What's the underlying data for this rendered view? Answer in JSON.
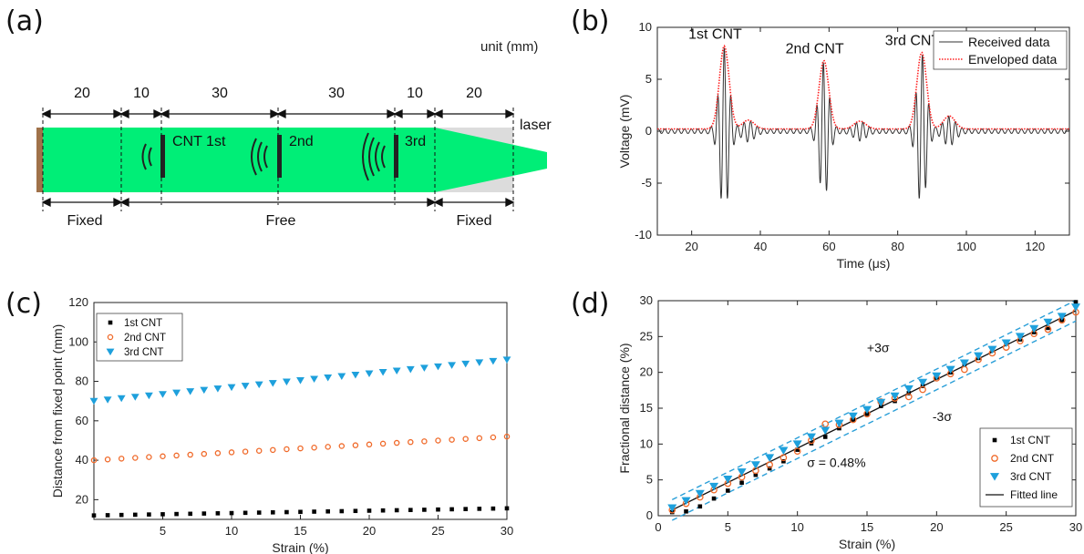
{
  "panel_labels": {
    "a": "(a)",
    "b": "(b)",
    "c": "(c)",
    "d": "(d)"
  },
  "colors": {
    "green": "#00ee77",
    "clamp": "#a0724a",
    "gray_region": "#dcdcdc",
    "received": "#333333",
    "enveloped": "#ff2020",
    "cnt1": "#000000",
    "cnt2": "#f06a2a",
    "cnt3": "#1ea0dc",
    "band": "#2a9fd8",
    "fit": "#111111"
  },
  "diagram": {
    "unit": "unit (mm)",
    "dimensions": [
      "20",
      "10",
      "30",
      "30",
      "10",
      "20"
    ],
    "sensor_labels": [
      "CNT 1st",
      "2nd",
      "3rd"
    ],
    "laser": "laser",
    "regions": [
      "Fixed",
      "Free",
      "Fixed"
    ]
  },
  "chart_data": [
    {
      "id": "b",
      "type": "line",
      "title": "",
      "xlabel": "Time (μs)",
      "ylabel": "Voltage (mV)",
      "xlim": [
        10,
        130
      ],
      "ylim": [
        -10,
        10
      ],
      "xticks": [
        20,
        40,
        60,
        80,
        100,
        120
      ],
      "yticks": [
        10,
        5,
        0,
        -5,
        -10
      ],
      "annotations": [
        "1st CNT",
        "2nd CNT",
        "3rd CNT"
      ],
      "legend": {
        "placement": "top-right",
        "entries": [
          "Received data",
          "Enveloped data"
        ]
      },
      "series": [
        {
          "name": "Received data",
          "style": "solid",
          "note": "oscillating bursts centred at the envelope peaks"
        },
        {
          "name": "Enveloped data",
          "style": "dotted"
        }
      ],
      "envelope_peaks": [
        {
          "t": 29.5,
          "v": 8.2
        },
        {
          "t": 58.5,
          "v": 6.8
        },
        {
          "t": 87.0,
          "v": 7.6
        }
      ],
      "secondary_peaks": [
        {
          "t": 36.5,
          "v": 1.1
        },
        {
          "t": 69.0,
          "v": 1.0
        },
        {
          "t": 95.0,
          "v": 1.5
        }
      ],
      "min_values": [
        -7.6,
        -7.2,
        -7.6
      ]
    },
    {
      "id": "c",
      "type": "scatter",
      "title": "",
      "xlabel": "Strain (%)",
      "ylabel": "Distance from fixed point (mm)",
      "xlim": [
        0,
        30
      ],
      "ylim": [
        10,
        120
      ],
      "xticks": [
        5,
        10,
        15,
        20,
        25,
        30
      ],
      "yticks": [
        20,
        40,
        60,
        80,
        100,
        120
      ],
      "legend": {
        "placement": "top-left",
        "entries": [
          "1st CNT",
          "2nd CNT",
          "3rd CNT"
        ]
      },
      "x": [
        0,
        1,
        2,
        3,
        4,
        5,
        6,
        7,
        8,
        9,
        10,
        11,
        12,
        13,
        14,
        15,
        16,
        17,
        18,
        19,
        20,
        21,
        22,
        23,
        24,
        25,
        26,
        27,
        28,
        29,
        30
      ],
      "series": [
        {
          "name": "1st CNT",
          "marker": "square",
          "start": 12.0,
          "end": 15.6
        },
        {
          "name": "2nd CNT",
          "marker": "circle",
          "start": 40.0,
          "end": 52.0
        },
        {
          "name": "3rd CNT",
          "marker": "triangle-down",
          "start": 70.0,
          "end": 91.0
        }
      ]
    },
    {
      "id": "d",
      "type": "scatter",
      "title": "",
      "xlabel": "Strain (%)",
      "ylabel": "Fractional distance (%)",
      "xlim": [
        0,
        30
      ],
      "ylim": [
        0,
        30
      ],
      "xticks": [
        0,
        5,
        10,
        15,
        20,
        25,
        30
      ],
      "yticks": [
        0,
        5,
        10,
        15,
        20,
        25,
        30
      ],
      "legend": {
        "placement": "bottom-right",
        "entries": [
          "1st CNT",
          "2nd CNT",
          "3rd CNT",
          "Fitted line"
        ]
      },
      "annotations": {
        "plus": "+3σ",
        "minus": "-3σ",
        "sigma": "σ = 0.48%"
      },
      "fit": {
        "x": [
          1,
          30
        ],
        "y": [
          0.8,
          28.6
        ]
      },
      "band_offset": 1.44,
      "x": [
        1,
        2,
        3,
        4,
        5,
        6,
        7,
        8,
        9,
        10,
        11,
        12,
        13,
        14,
        15,
        16,
        17,
        18,
        19,
        20,
        21,
        22,
        23,
        24,
        25,
        26,
        27,
        28,
        29,
        30
      ],
      "series": [
        {
          "name": "1st CNT",
          "marker": "square",
          "y": [
            0.5,
            0.6,
            1.3,
            2.4,
            3.5,
            4.6,
            5.7,
            6.6,
            7.6,
            9.2,
            10.1,
            11.0,
            12.2,
            13.4,
            14.2,
            15.3,
            16.0,
            17.1,
            18.1,
            19.3,
            20.0,
            21.1,
            22.0,
            23.1,
            24.0,
            24.6,
            25.6,
            26.2,
            27.3,
            29.8
          ]
        },
        {
          "name": "2nd CNT",
          "marker": "circle",
          "y": [
            0.8,
            1.7,
            2.6,
            3.6,
            4.5,
            5.4,
            6.3,
            7.1,
            8.1,
            9.0,
            10.5,
            12.8,
            12.7,
            13.4,
            14.2,
            15.9,
            16.4,
            16.6,
            17.6,
            19.2,
            19.8,
            20.4,
            21.8,
            22.7,
            23.5,
            24.4,
            25.4,
            26.0,
            27.3,
            28.4
          ]
        },
        {
          "name": "3rd CNT",
          "marker": "triangle-down",
          "y": [
            1.1,
            2.1,
            3.1,
            4.1,
            5.1,
            6.1,
            7.1,
            8.1,
            9.1,
            10.0,
            11.0,
            11.9,
            12.9,
            13.9,
            14.8,
            15.8,
            16.7,
            17.7,
            18.6,
            19.5,
            20.4,
            21.3,
            22.3,
            23.2,
            24.1,
            25.0,
            26.1,
            27.0,
            27.8,
            29.1
          ]
        }
      ]
    }
  ]
}
